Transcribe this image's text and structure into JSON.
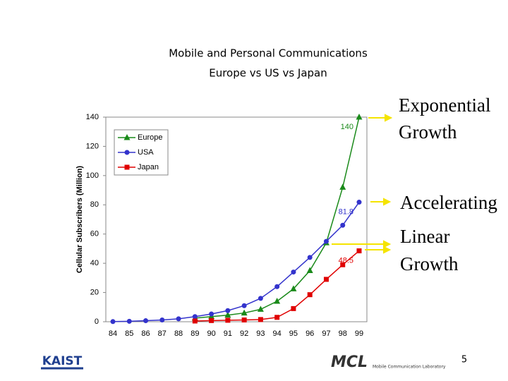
{
  "chart_data": {
    "type": "line",
    "title": "Mobile and Personal Communications",
    "subtitle": "Europe vs US vs Japan",
    "ylabel": "Cellular Subscribers (Million)",
    "categories": [
      "84",
      "85",
      "86",
      "87",
      "88",
      "89",
      "90",
      "91",
      "92",
      "93",
      "94",
      "95",
      "96",
      "97",
      "98",
      "99"
    ],
    "series": [
      {
        "name": "Europe",
        "color": "#1a8a1a",
        "marker": "triangle",
        "values": [
          null,
          null,
          null,
          null,
          null,
          2.5,
          3.5,
          4.5,
          6,
          8.5,
          14,
          22.5,
          35,
          54,
          92,
          140
        ],
        "end_label": "140",
        "label_color": "#1a8a1a"
      },
      {
        "name": "USA",
        "color": "#3333cc",
        "marker": "circle",
        "values": [
          0.1,
          0.3,
          0.7,
          1.2,
          2,
          3.5,
          5.3,
          7.6,
          11,
          16,
          24,
          34,
          44,
          55,
          66,
          81.8
        ],
        "end_label": "81.8",
        "label_color": "#3333cc"
      },
      {
        "name": "Japan",
        "color": "#e00000",
        "marker": "square",
        "values": [
          null,
          null,
          null,
          null,
          null,
          0.5,
          0.8,
          1,
          1.2,
          1.5,
          3,
          9,
          18.5,
          29,
          39,
          48.5
        ],
        "end_label": "48.5",
        "label_color": "#e00000"
      }
    ],
    "ylim": [
      0,
      140
    ],
    "yticks": [
      0,
      20,
      40,
      60,
      80,
      100,
      120,
      140
    ],
    "legend": "upper left",
    "annotations": [
      "Exponential",
      "Growth",
      "Accelerating",
      "Linear",
      "Growth"
    ]
  },
  "footer": {
    "left_logo": "KAIST",
    "center_logo": "MCL",
    "lab": "Mobile Communication Laboratory",
    "page": "5"
  }
}
